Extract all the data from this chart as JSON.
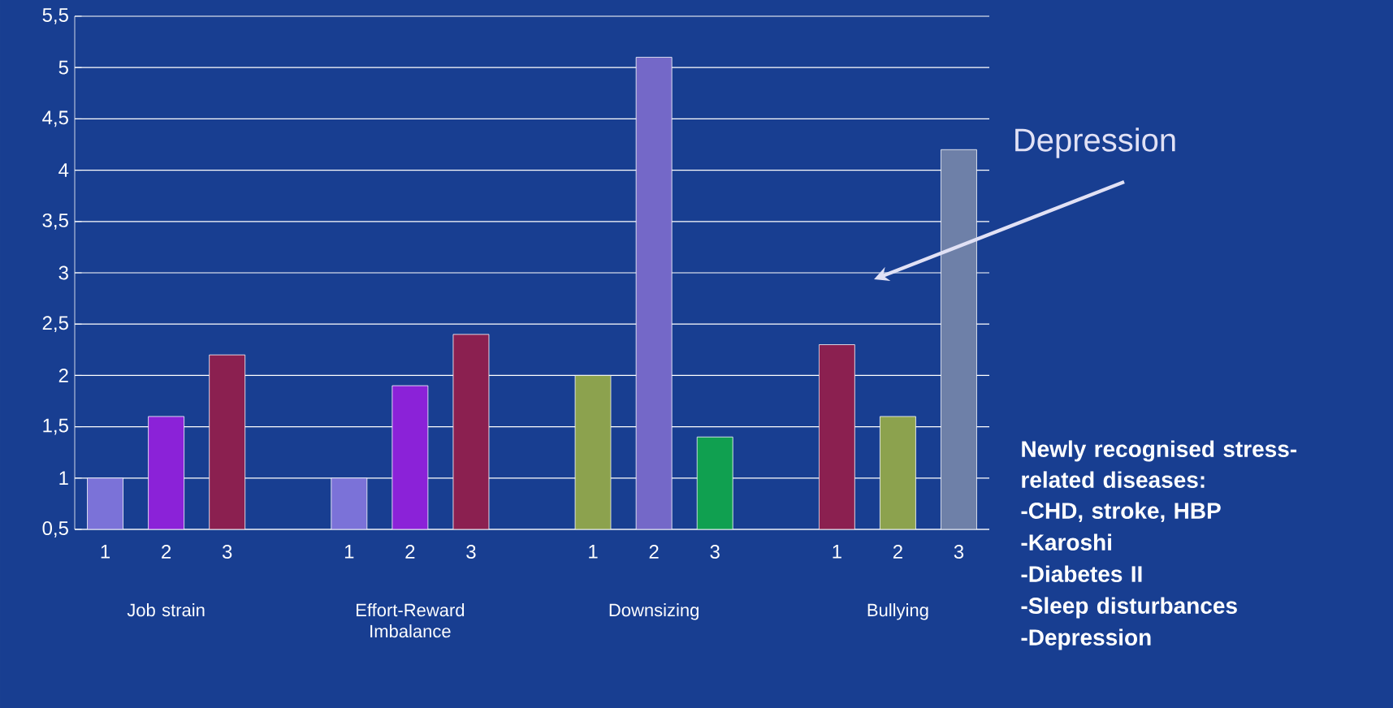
{
  "chart_data": {
    "type": "bar",
    "categories": [
      "1",
      "2",
      "3",
      "1",
      "2",
      "3",
      "1",
      "2",
      "3",
      "1",
      "2",
      "3"
    ],
    "values": [
      1.0,
      1.6,
      2.2,
      1.0,
      1.9,
      2.4,
      2.0,
      5.1,
      1.4,
      2.3,
      1.6,
      4.2
    ],
    "colors": [
      "#7b72d8",
      "#8b22d8",
      "#8b2050",
      "#7b72d8",
      "#8b22d8",
      "#8b2050",
      "#8ca24e",
      "#7468c8",
      "#10a050",
      "#8b2050",
      "#8ca24e",
      "#6e80a8"
    ],
    "ylim": [
      0.5,
      5.5
    ],
    "yticks": [
      {
        "value": 0.5,
        "label": "0,5"
      },
      1,
      {
        "value": 1.5,
        "label": "1,5"
      },
      2,
      {
        "value": 2.5,
        "label": "2,5"
      },
      3,
      {
        "value": 3.5,
        "label": "3,5"
      },
      4,
      {
        "value": 4.5,
        "label": "4,5"
      },
      5,
      {
        "value": 5.5,
        "label": "5,5"
      }
    ],
    "grid": "y",
    "annotations": [
      "Job strain",
      "Effort-Reward Imbalance",
      "Downsizing",
      "Bullying",
      "Depression",
      "Newly recognised stress-related diseases:",
      "-CHD, stroke, HBP",
      "-Karoshi",
      "-Diabetes II",
      "-Sleep disturbances",
      "-Depression"
    ]
  }
}
